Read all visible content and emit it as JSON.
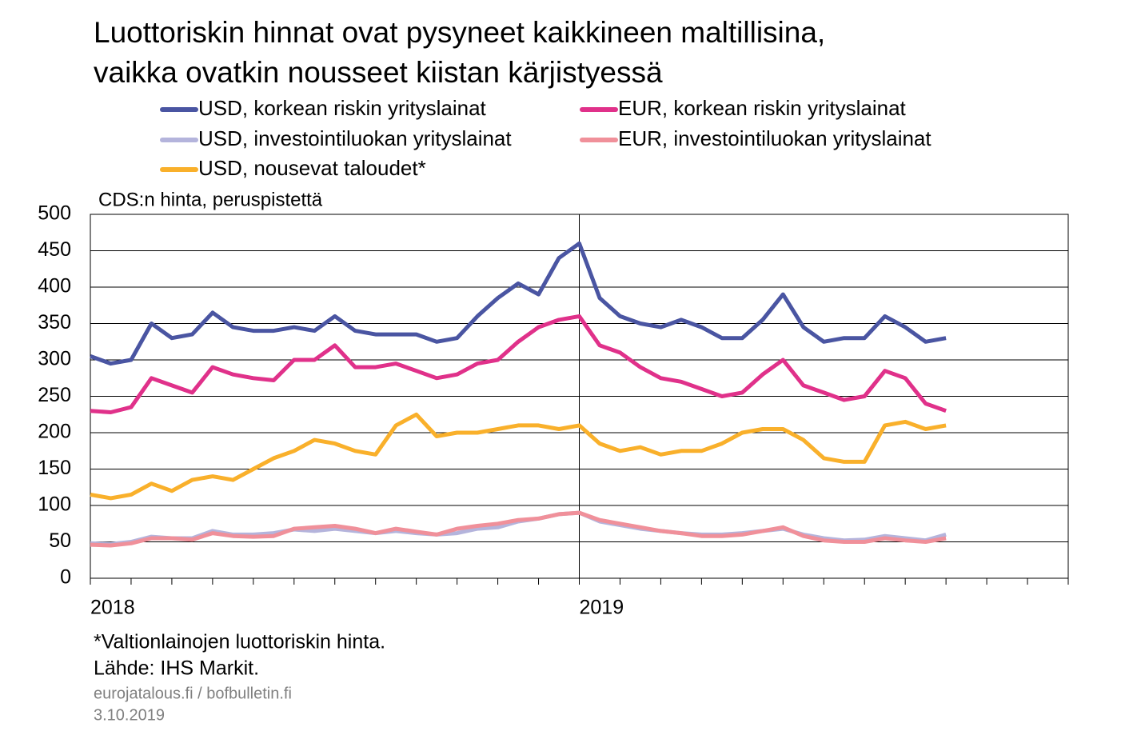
{
  "chart_data": {
    "type": "line",
    "title": [
      "Luottoriskin hinnat ovat pysyneet kaikkineen maltillisina,",
      "vaikka ovatkin nousseet kiistan kärjistyessä"
    ],
    "y_label": "CDS:n hinta, peruspistettä",
    "footnotes": [
      "*Valtionlainojen luottoriskin hinta.",
      "Lähde: IHS Markit."
    ],
    "source": [
      "eurojatalous.fi  / bofbulletin.fi",
      "3.10.2019"
    ],
    "categories": [
      "2018",
      null,
      null,
      null,
      null,
      null,
      null,
      null,
      null,
      null,
      null,
      null,
      null,
      null,
      null,
      null,
      null,
      null,
      null,
      null,
      null,
      null,
      null,
      null,
      "2019",
      null,
      null,
      null,
      null,
      null,
      null,
      null,
      null,
      null,
      null,
      null,
      null,
      null,
      null,
      null,
      null,
      null,
      null,
      null,
      null,
      null,
      null,
      null
    ],
    "ylim": [
      0,
      500
    ],
    "yticks": [
      0,
      50,
      100,
      150,
      200,
      250,
      300,
      350,
      400,
      450,
      500
    ],
    "grid": true,
    "series": [
      {
        "name": "USD, korkean riskin yrityslainat",
        "color": "#4a55a2",
        "values": [
          305,
          295,
          300,
          350,
          330,
          335,
          365,
          345,
          340,
          340,
          345,
          340,
          360,
          340,
          335,
          335,
          335,
          325,
          330,
          360,
          385,
          405,
          390,
          440,
          460,
          385,
          360,
          350,
          345,
          355,
          345,
          330,
          330,
          355,
          390,
          345,
          325,
          330,
          330,
          360,
          345,
          325,
          330,
          null,
          null,
          null,
          null,
          null
        ]
      },
      {
        "name": "EUR, korkean riskin yrityslainat",
        "color": "#e0318a",
        "values": [
          230,
          228,
          235,
          275,
          265,
          255,
          290,
          280,
          275,
          272,
          300,
          300,
          320,
          290,
          290,
          295,
          285,
          275,
          280,
          295,
          300,
          325,
          345,
          355,
          360,
          320,
          310,
          290,
          275,
          270,
          260,
          250,
          255,
          280,
          300,
          265,
          255,
          245,
          250,
          285,
          275,
          240,
          230,
          null,
          null,
          null,
          null,
          null
        ]
      },
      {
        "name": "USD, investointiluokan yrityslainat",
        "color": "#b4b4dc",
        "values": [
          48,
          47,
          50,
          57,
          55,
          55,
          65,
          60,
          60,
          62,
          67,
          65,
          68,
          65,
          62,
          65,
          62,
          60,
          62,
          68,
          70,
          78,
          82,
          88,
          90,
          78,
          73,
          68,
          65,
          62,
          60,
          60,
          62,
          65,
          68,
          60,
          55,
          52,
          53,
          58,
          55,
          52,
          60,
          null,
          null,
          null,
          null,
          null
        ]
      },
      {
        "name": "EUR, investointiluokan yrityslainat",
        "color": "#f0909a",
        "values": [
          46,
          45,
          48,
          55,
          55,
          53,
          62,
          58,
          57,
          58,
          68,
          70,
          72,
          68,
          62,
          68,
          64,
          60,
          68,
          72,
          75,
          80,
          82,
          88,
          90,
          80,
          75,
          70,
          65,
          62,
          58,
          58,
          60,
          65,
          70,
          58,
          52,
          50,
          50,
          55,
          52,
          50,
          55,
          null,
          null,
          null,
          null,
          null
        ]
      },
      {
        "name": "USD, nousevat taloudet*",
        "color": "#f9b02b",
        "values": [
          115,
          110,
          115,
          130,
          120,
          135,
          140,
          135,
          150,
          165,
          175,
          190,
          185,
          175,
          170,
          210,
          225,
          195,
          200,
          200,
          205,
          210,
          210,
          205,
          210,
          185,
          175,
          180,
          170,
          175,
          175,
          185,
          200,
          205,
          205,
          190,
          165,
          160,
          160,
          210,
          215,
          205,
          210,
          null,
          null,
          null,
          null,
          null
        ]
      }
    ]
  }
}
